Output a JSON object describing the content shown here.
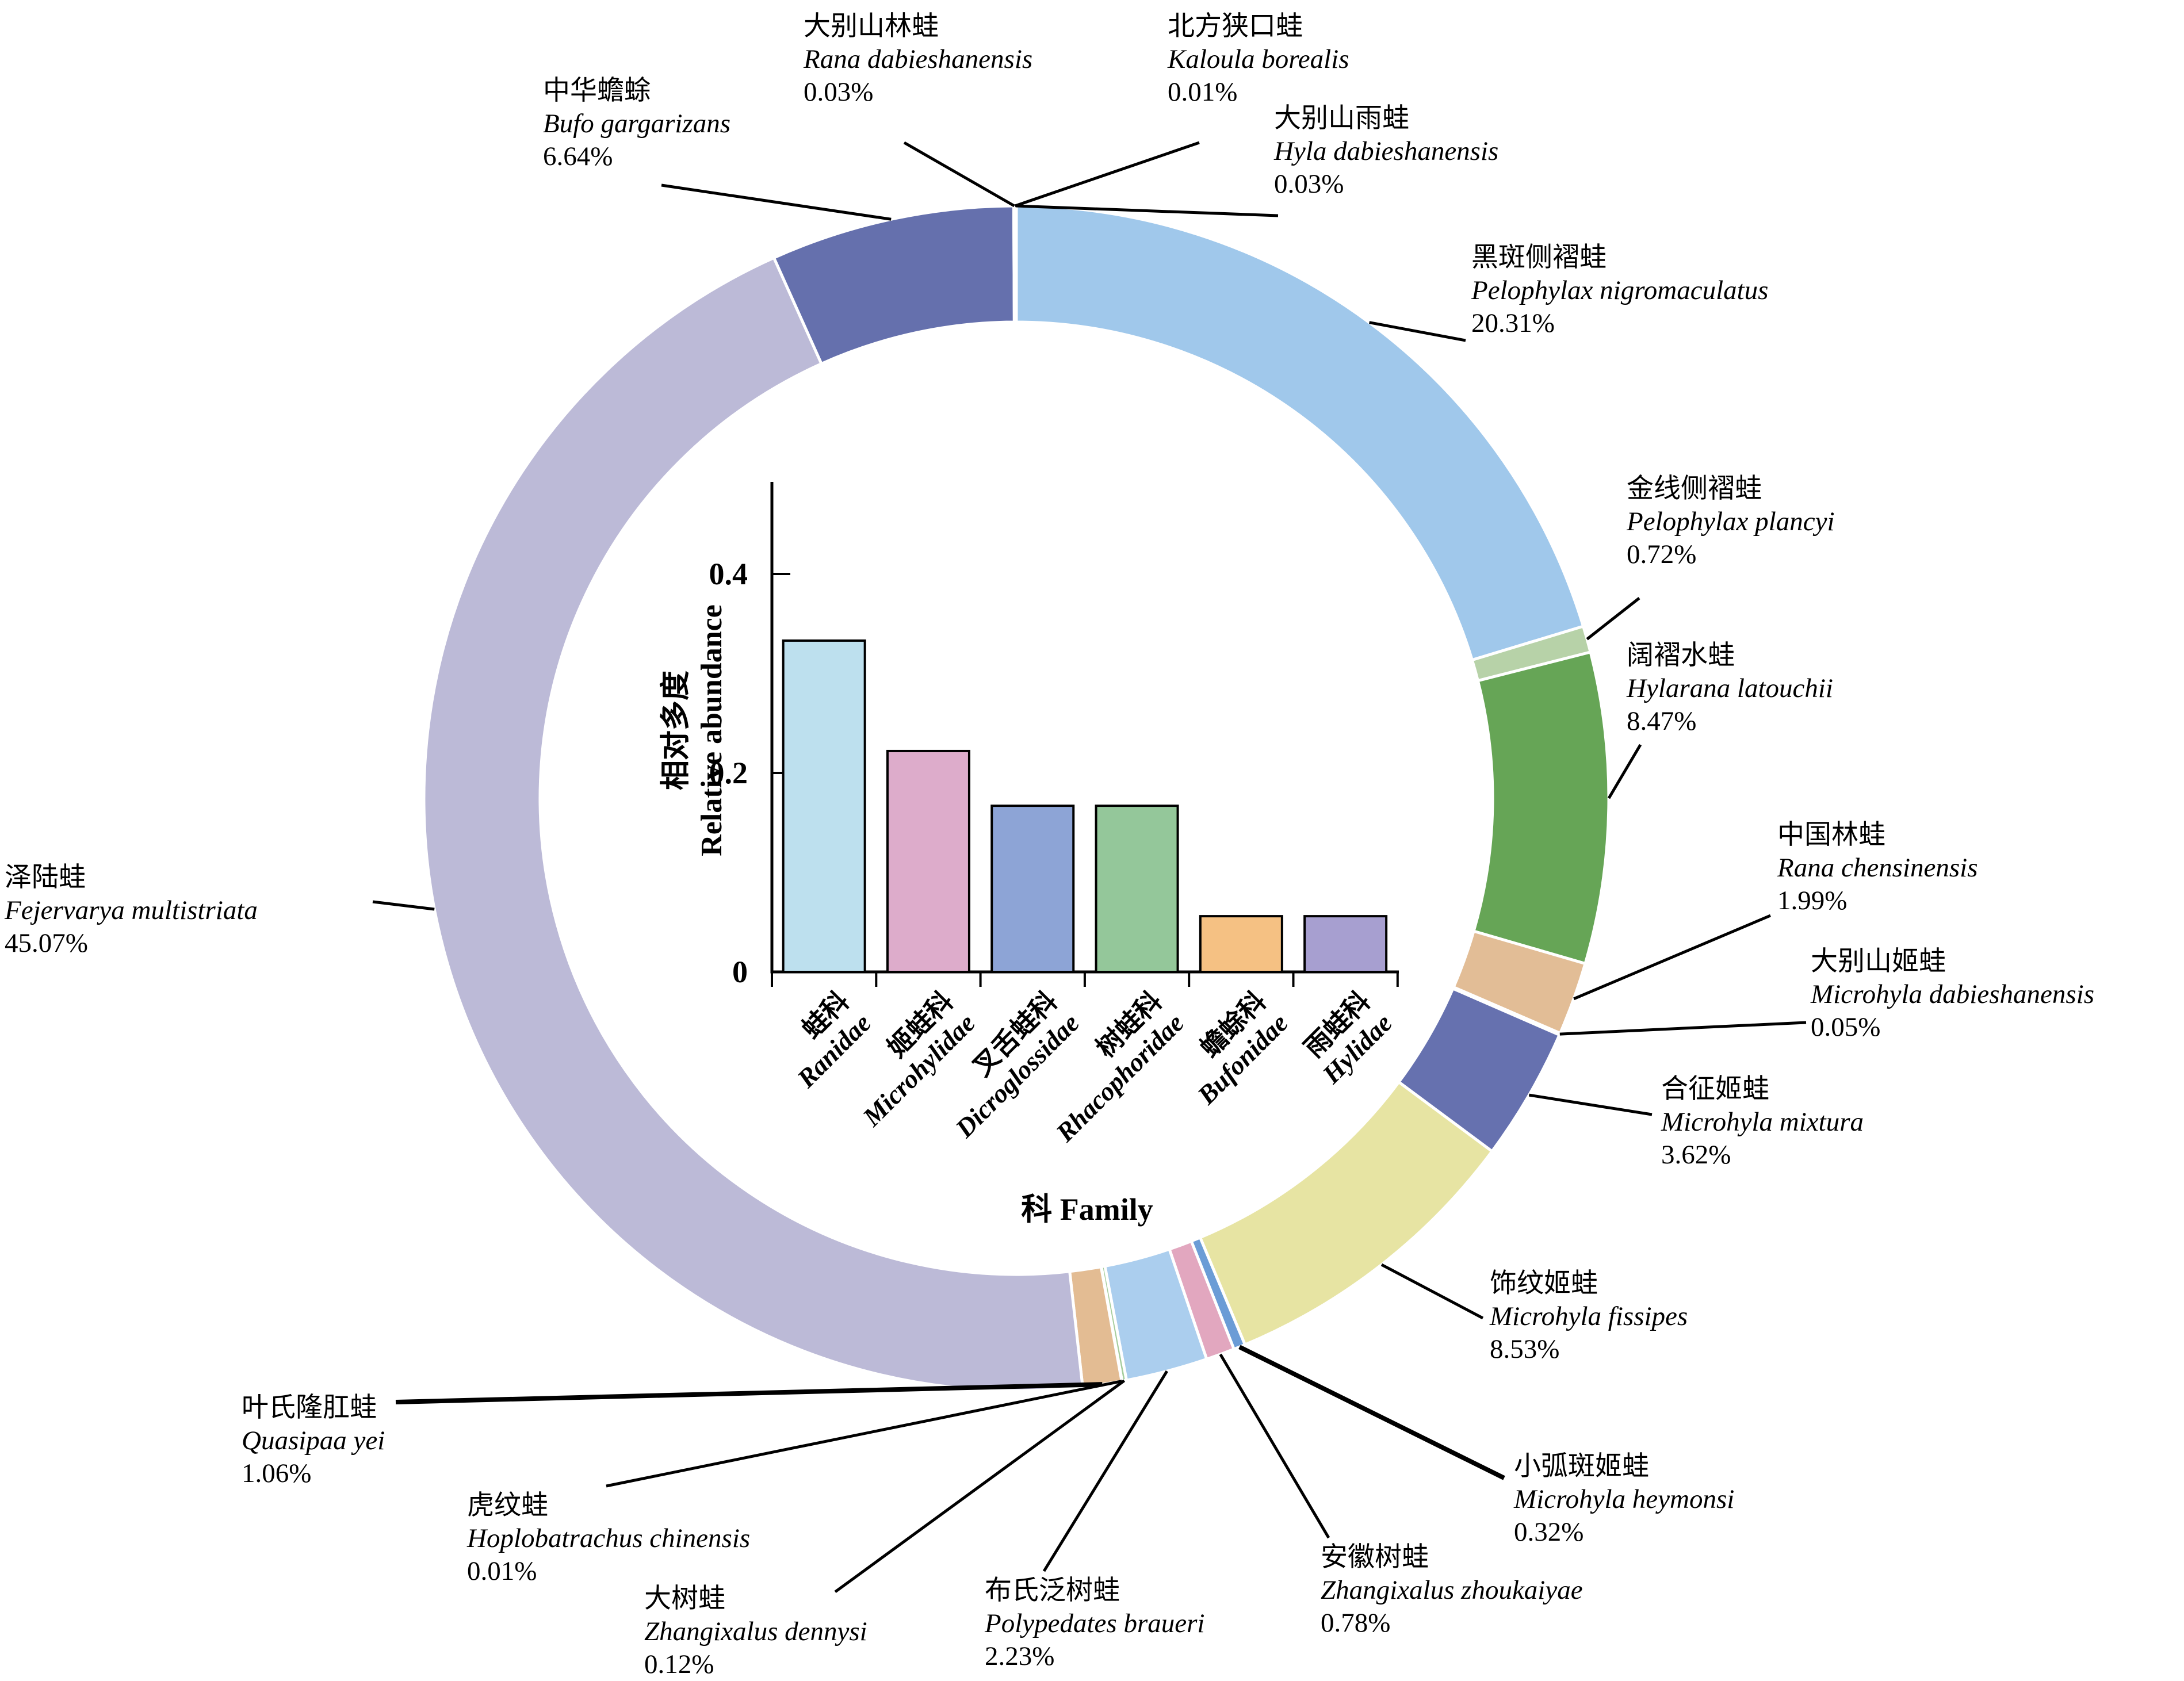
{
  "chart_data": [
    {
      "type": "pie",
      "subtype": "donut",
      "title": "",
      "direction": "clockwise",
      "start_angle_deg": 0,
      "slices": [
        {
          "key": "nigromaculatus",
          "cn": "黑斑侧褶蛙",
          "latin": "Pelophylax nigromaculatus",
          "value": 20.31,
          "label": "20.31%",
          "color": "#a0c8eb"
        },
        {
          "key": "plancyi",
          "cn": "金线侧褶蛙",
          "latin": "Pelophylax plancyi",
          "value": 0.72,
          "label": "0.72%",
          "color": "#b7d2a8"
        },
        {
          "key": "latouchii",
          "cn": "阔褶水蛙",
          "latin": "Hylarana latouchii",
          "value": 8.47,
          "label": "8.47%",
          "color": "#66a556"
        },
        {
          "key": "chensinensis",
          "cn": "中国林蛙",
          "latin": "Rana chensinensis",
          "value": 1.99,
          "label": "1.99%",
          "color": "#e2bd96"
        },
        {
          "key": "m_dabieshanensis",
          "cn": "大别山姬蛙",
          "latin": "Microhyla dabieshanensis",
          "value": 0.05,
          "label": "0.05%",
          "color": "#cfe3f5"
        },
        {
          "key": "mixtura",
          "cn": "合征姬蛙",
          "latin": "Microhyla mixtura",
          "value": 3.62,
          "label": "3.62%",
          "color": "#6671af"
        },
        {
          "key": "fissipes",
          "cn": "饰纹姬蛙",
          "latin": "Microhyla fissipes",
          "value": 8.53,
          "label": "8.53%",
          "color": "#e7e4a3"
        },
        {
          "key": "heymonsi",
          "cn": "小弧斑姬蛙",
          "latin": "Microhyla heymonsi",
          "value": 0.32,
          "label": "0.32%",
          "color": "#6b9cd6"
        },
        {
          "key": "zhoukaiyae",
          "cn": "安徽树蛙",
          "latin": "Zhangixalus zhoukaiyae",
          "value": 0.78,
          "label": "0.78%",
          "color": "#e2a7bf"
        },
        {
          "key": "braueri",
          "cn": "布氏泛树蛙",
          "latin": "Polypedates braueri",
          "value": 2.23,
          "label": "2.23%",
          "color": "#abceee"
        },
        {
          "key": "dennysi",
          "cn": "大树蛙",
          "latin": "Zhangixalus dennysi",
          "value": 0.12,
          "label": "0.12%",
          "color": "#a5cd9c"
        },
        {
          "key": "chinensis",
          "cn": "虎纹蛙",
          "latin": "Hoplobatrachus chinensis",
          "value": 0.01,
          "label": "0.01%",
          "color": "#d9c9e0"
        },
        {
          "key": "yei",
          "cn": "叶氏隆肛蛙",
          "latin": "Quasipaa yei",
          "value": 1.06,
          "label": "1.06%",
          "color": "#e3bc93"
        },
        {
          "key": "multistriata",
          "cn": "泽陆蛙",
          "latin": "Fejervarya multistriata",
          "value": 45.07,
          "label": "45.07%",
          "color": "#bcbad7"
        },
        {
          "key": "gargarizans",
          "cn": "中华蟾蜍",
          "latin": "Bufo gargarizans",
          "value": 6.64,
          "label": "6.64%",
          "color": "#6570ad"
        },
        {
          "key": "r_dabieshanensis",
          "cn": "大别山林蛙",
          "latin": "Rana dabieshanensis",
          "value": 0.03,
          "label": "0.03%",
          "color": "#8d97c5"
        },
        {
          "key": "borealis",
          "cn": "北方狭口蛙",
          "latin": "Kaloula borealis",
          "value": 0.01,
          "label": "0.01%",
          "color": "#f2d8ac"
        },
        {
          "key": "h_dabieshanensis",
          "cn": "大别山雨蛙",
          "latin": "Hyla dabieshanensis",
          "value": 0.03,
          "label": "0.03%",
          "color": "#a8d8ea"
        }
      ]
    },
    {
      "type": "bar",
      "title": "",
      "ylabel_cn": "相对多度",
      "ylabel_en": "Relative abundance",
      "xlabel": "科 Family",
      "ytick_labels": [
        "0",
        "0.2",
        "0.4"
      ],
      "yticks": [
        0,
        0.2,
        0.4
      ],
      "ylim": [
        0,
        0.5
      ],
      "grid": false,
      "categories": [
        {
          "cn": "蛙科",
          "latin": "Ranidae",
          "value": 0.333,
          "color": "#bde0ee"
        },
        {
          "cn": "姬蛙科",
          "latin": "Microhylidae",
          "value": 0.222,
          "color": "#ddaccb"
        },
        {
          "cn": "叉舌蛙科",
          "latin": "Dicroglossidae",
          "value": 0.167,
          "color": "#8da4d6"
        },
        {
          "cn": "树蛙科",
          "latin": "Rhacophoridae",
          "value": 0.167,
          "color": "#94c79a"
        },
        {
          "cn": "蟾蜍科",
          "latin": "Bufonidae",
          "value": 0.056,
          "color": "#f5c183"
        },
        {
          "cn": "雨蛙科",
          "latin": "Hylidae",
          "value": 0.056,
          "color": "#a79fd0"
        }
      ]
    }
  ],
  "colors": {
    "background": "#ffffff",
    "divider": "#ffffff",
    "axis": "#000000",
    "leader_line": "#000000",
    "text": "#000000"
  }
}
